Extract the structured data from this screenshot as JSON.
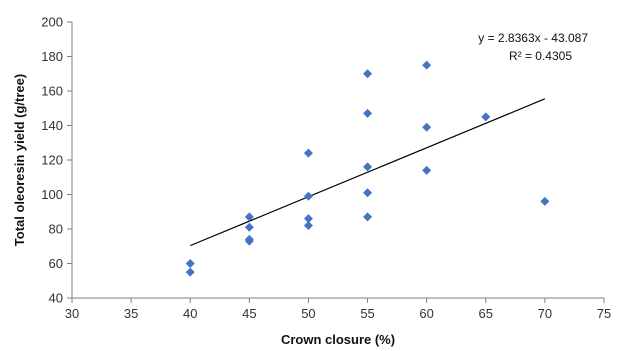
{
  "chart_data": {
    "type": "scatter",
    "title": "",
    "xlabel": "Crown closure (%)",
    "ylabel": "Total oleoresin yield (g/tree)",
    "xlim": [
      30,
      75
    ],
    "ylim": [
      40,
      200
    ],
    "xticks": [
      30,
      35,
      40,
      45,
      50,
      55,
      60,
      65,
      70,
      75
    ],
    "yticks": [
      40,
      60,
      80,
      100,
      120,
      140,
      160,
      180,
      200
    ],
    "grid": false,
    "legend": "none",
    "marker": "diamond",
    "marker_color": "#4472C4",
    "trendline_color": "#000000",
    "series": [
      {
        "x": [
          40,
          40,
          45,
          45,
          45,
          45,
          50,
          50,
          50,
          50,
          55,
          55,
          55,
          55,
          55,
          60,
          60,
          60,
          65,
          70
        ],
        "y": [
          60,
          55,
          87,
          81,
          74,
          73,
          124,
          99,
          86,
          82,
          170,
          147,
          116,
          101,
          87,
          175,
          139,
          114,
          145,
          96
        ]
      }
    ],
    "trendline": {
      "slope": 2.8363,
      "intercept": -43.087,
      "x_range": [
        40,
        70
      ]
    },
    "annotations": {
      "equation": "y = 2.8363x - 43.087",
      "r_squared": "R² = 0.4305"
    }
  }
}
